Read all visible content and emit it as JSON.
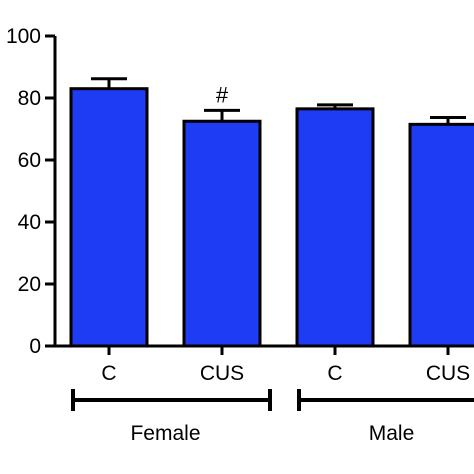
{
  "chart_data": {
    "type": "bar",
    "title": "",
    "xlabel": "",
    "ylabel": "",
    "ylim": [
      0,
      100
    ],
    "yticks": [
      0,
      20,
      40,
      60,
      80,
      100
    ],
    "categories": [
      "C",
      "CUS",
      "C",
      "CUS"
    ],
    "values": [
      83,
      72.5,
      76.5,
      71.5
    ],
    "errors": [
      3.2,
      3.5,
      1.3,
      2.2
    ],
    "groups": [
      {
        "label": "Female",
        "categories": [
          0,
          1
        ]
      },
      {
        "label": "Male",
        "categories": [
          2,
          3
        ]
      }
    ],
    "annotations": [
      {
        "category": 1,
        "text": "#"
      }
    ],
    "bar_color": "#1f3cf5",
    "grid": false,
    "legend": "none"
  }
}
